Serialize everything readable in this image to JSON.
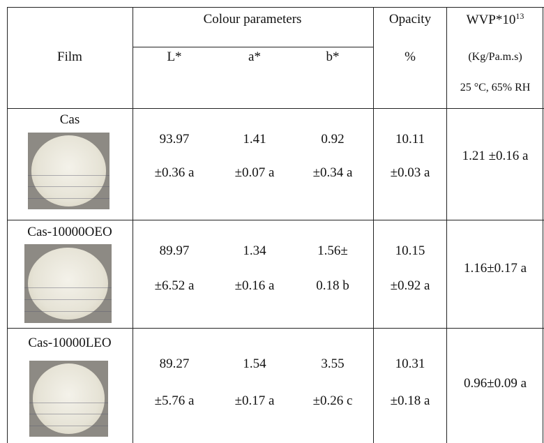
{
  "header": {
    "film": "Film",
    "colour_parameters": "Colour parameters",
    "columns": [
      "L*",
      "a*",
      "b*"
    ],
    "opacity": "Opacity",
    "opacity_unit": "%",
    "wvp": "WVP*10",
    "wvp_exponent": "13",
    "wvp_unit": "(Kg/Pa.m.s)",
    "wvp_conditions": "25 °C, 65% RH"
  },
  "rows": [
    {
      "film": "Cas",
      "cells": [
        [
          "93.97",
          "±0.36 a"
        ],
        [
          "1.41",
          "±0.07 a"
        ],
        [
          "0.92",
          "±0.34 a"
        ],
        [
          "10.11",
          "±0.03 a"
        ]
      ],
      "wvp": "1.21 ±0.16 a"
    },
    {
      "film": "Cas-10000OEO",
      "cells": [
        [
          "89.97",
          "±6.52 a"
        ],
        [
          "1.34",
          "±0.16 a"
        ],
        [
          "1.56±",
          "0.18 b"
        ],
        [
          "10.15",
          "±0.92 a"
        ]
      ],
      "wvp": "1.16±0.17 a"
    },
    {
      "film": "Cas-10000LEO",
      "cells": [
        [
          "89.27",
          "±5.76 a"
        ],
        [
          "1.54",
          "±0.17 a"
        ],
        [
          "3.55",
          "±0.26 c"
        ],
        [
          "10.31",
          "±0.18 a"
        ]
      ],
      "wvp": "0.96±0.09 a"
    }
  ]
}
